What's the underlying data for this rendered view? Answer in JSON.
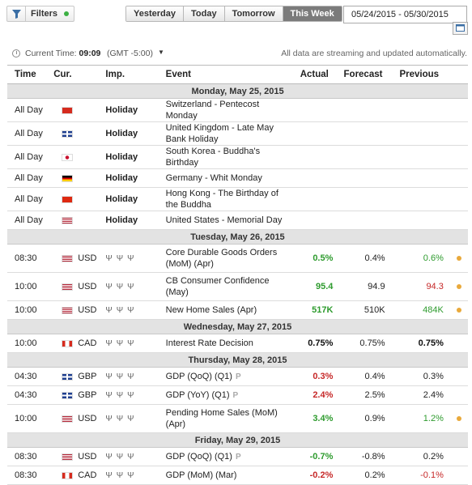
{
  "toolbar": {
    "filters_label": "Filters",
    "periods": [
      "Yesterday",
      "Today",
      "Tomorrow",
      "This Week"
    ],
    "active_period": "This Week",
    "date_range": "05/24/2015 - 05/30/2015"
  },
  "timebar": {
    "current_time_label": "Current Time:",
    "current_time": "09:09",
    "timezone": "(GMT -5:00)",
    "stream_note": "All data are streaming and updated automatically."
  },
  "columns": [
    "Time",
    "Cur.",
    "Imp.",
    "Event",
    "Actual",
    "Forecast",
    "Previous"
  ],
  "days": [
    {
      "label": "Monday, May 25, 2015",
      "rows": [
        {
          "time": "All Day",
          "flag": "ch",
          "cur": "",
          "imp": "Holiday",
          "event": [
            "Switzerland - Pentecost Monday"
          ],
          "actual": "",
          "forecast": "",
          "previous": ""
        },
        {
          "time": "All Day",
          "flag": "uk",
          "cur": "",
          "imp": "Holiday",
          "event": [
            "United Kingdom - Late May Bank Holiday"
          ],
          "actual": "",
          "forecast": "",
          "previous": ""
        },
        {
          "time": "All Day",
          "flag": "kr",
          "cur": "",
          "imp": "Holiday",
          "event": [
            "South Korea - Buddha's Birthday"
          ],
          "actual": "",
          "forecast": "",
          "previous": ""
        },
        {
          "time": "All Day",
          "flag": "de",
          "cur": "",
          "imp": "Holiday",
          "event": [
            "Germany - Whit Monday"
          ],
          "actual": "",
          "forecast": "",
          "previous": ""
        },
        {
          "time": "All Day",
          "flag": "hk",
          "cur": "",
          "imp": "Holiday",
          "event": [
            "Hong Kong - The Birthday of the Buddha"
          ],
          "actual": "",
          "forecast": "",
          "previous": ""
        },
        {
          "time": "All Day",
          "flag": "us",
          "cur": "",
          "imp": "Holiday",
          "event": [
            "United States - Memorial Day"
          ],
          "actual": "",
          "forecast": "",
          "previous": ""
        }
      ]
    },
    {
      "label": "Tuesday, May 26, 2015",
      "rows": [
        {
          "time": "08:30",
          "flag": "us",
          "cur": "USD",
          "imp": "bulls",
          "event": [
            "Core Durable Goods Orders",
            "(MoM) (Apr)"
          ],
          "actual": "0.5%",
          "actual_tone": "pos",
          "forecast": "0.4%",
          "previous": "0.6%",
          "previous_tone": "pp",
          "dot": true
        },
        {
          "time": "10:00",
          "flag": "us",
          "cur": "USD",
          "imp": "bulls",
          "event": [
            "CB Consumer Confidence",
            "(May)"
          ],
          "actual": "95.4",
          "actual_tone": "pos",
          "forecast": "94.9",
          "previous": "94.3",
          "previous_tone": "pn",
          "dot": true
        },
        {
          "time": "10:00",
          "flag": "us",
          "cur": "USD",
          "imp": "bulls",
          "event": [
            "New Home Sales (Apr)"
          ],
          "actual": "517K",
          "actual_tone": "pos",
          "forecast": "510K",
          "previous": "484K",
          "previous_tone": "pp",
          "dot": true
        }
      ]
    },
    {
      "label": "Wednesday, May 27, 2015",
      "rows": [
        {
          "time": "10:00",
          "flag": "ca",
          "cur": "CAD",
          "imp": "bulls",
          "event": [
            "Interest Rate Decision"
          ],
          "actual": "0.75%",
          "actual_tone": "neu",
          "forecast": "0.75%",
          "previous": "0.75%",
          "previous_tone": "neu"
        }
      ]
    },
    {
      "label": "Thursday, May 28, 2015",
      "rows": [
        {
          "time": "04:30",
          "flag": "uk",
          "cur": "GBP",
          "imp": "bulls",
          "event": [
            "GDP (QoQ) (Q1)"
          ],
          "prelim": true,
          "actual": "0.3%",
          "actual_tone": "neg",
          "forecast": "0.4%",
          "previous": "0.3%",
          "previous_tone": ""
        },
        {
          "time": "04:30",
          "flag": "uk",
          "cur": "GBP",
          "imp": "bulls",
          "event": [
            "GDP (YoY) (Q1)"
          ],
          "prelim": true,
          "actual": "2.4%",
          "actual_tone": "neg",
          "forecast": "2.5%",
          "previous": "2.4%",
          "previous_tone": ""
        },
        {
          "time": "10:00",
          "flag": "us",
          "cur": "USD",
          "imp": "bulls",
          "event": [
            "Pending Home Sales (MoM)",
            "(Apr)"
          ],
          "actual": "3.4%",
          "actual_tone": "pos",
          "forecast": "0.9%",
          "previous": "1.2%",
          "previous_tone": "pp",
          "dot": true
        }
      ]
    },
    {
      "label": "Friday, May 29, 2015",
      "rows": [
        {
          "time": "08:30",
          "flag": "us",
          "cur": "USD",
          "imp": "bulls",
          "event": [
            "GDP (QoQ) (Q1)"
          ],
          "prelim": true,
          "actual": "-0.7%",
          "actual_tone": "pos",
          "forecast": "-0.8%",
          "previous": "0.2%",
          "previous_tone": ""
        },
        {
          "time": "08:30",
          "flag": "ca",
          "cur": "CAD",
          "imp": "bulls",
          "event": [
            "GDP (MoM) (Mar)"
          ],
          "actual": "-0.2%",
          "actual_tone": "neg",
          "forecast": "0.2%",
          "previous": "-0.1%",
          "previous_tone": "pn"
        }
      ]
    }
  ],
  "bull_glyphs": "ΨΨΨ",
  "prelim_glyph": "P"
}
